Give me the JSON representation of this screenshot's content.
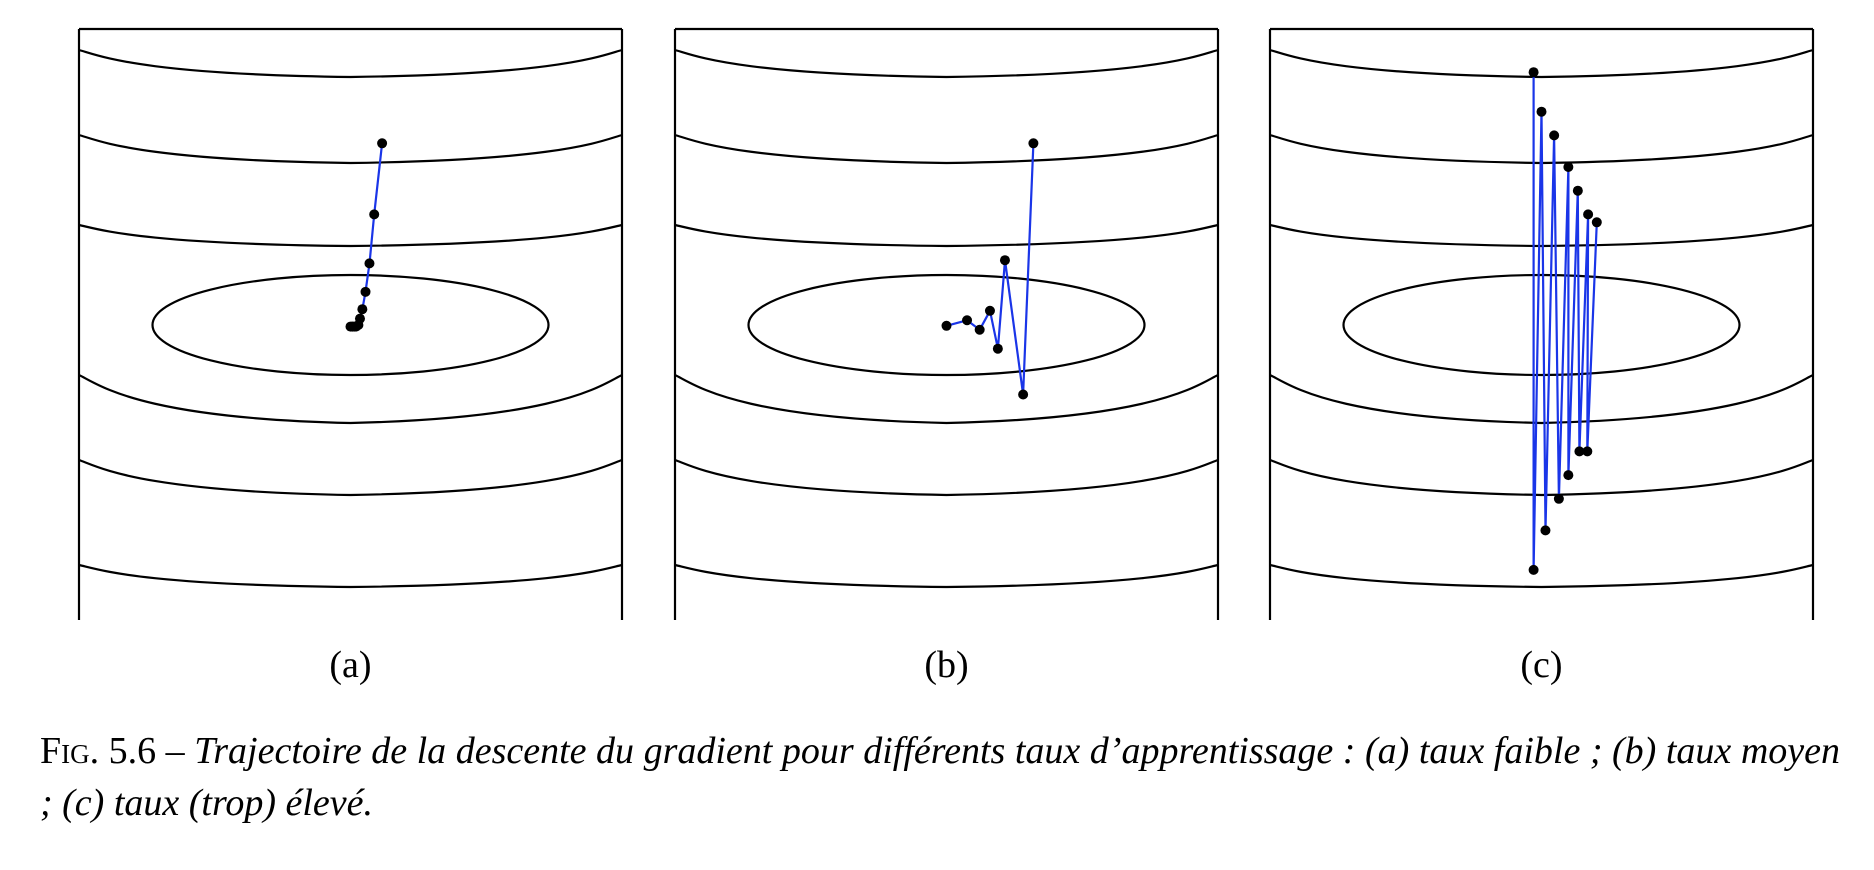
{
  "colors": {
    "trajectory": "#1a35e8",
    "contour": "#000000",
    "point": "#000000"
  },
  "panels": [
    {
      "label": "(a)",
      "trajectory": [
        [
          0.4,
          2.3
        ],
        [
          0.3,
          1.4
        ],
        [
          0.24,
          0.78
        ],
        [
          0.19,
          0.42
        ],
        [
          0.15,
          0.2
        ],
        [
          0.12,
          0.08
        ],
        [
          0.1,
          0.0
        ],
        [
          0.07,
          -0.02
        ],
        [
          0.05,
          -0.02
        ],
        [
          0.03,
          -0.02
        ],
        [
          0.02,
          -0.02
        ],
        [
          0.0,
          -0.02
        ]
      ]
    },
    {
      "label": "(b)",
      "trajectory": [
        [
          1.1,
          2.3
        ],
        [
          0.97,
          -0.88
        ],
        [
          0.74,
          0.82
        ],
        [
          0.65,
          -0.3
        ],
        [
          0.55,
          0.18
        ],
        [
          0.42,
          -0.06
        ],
        [
          0.26,
          0.06
        ],
        [
          0.0,
          -0.01
        ]
      ]
    },
    {
      "label": "(c)",
      "trajectory": [
        [
          -0.1,
          3.2
        ],
        [
          -0.1,
          -3.1
        ],
        [
          0.0,
          2.7
        ],
        [
          0.05,
          -2.6
        ],
        [
          0.16,
          2.4
        ],
        [
          0.22,
          -2.2
        ],
        [
          0.34,
          2.0
        ],
        [
          0.34,
          -1.9
        ],
        [
          0.46,
          1.7
        ],
        [
          0.48,
          -1.6
        ],
        [
          0.59,
          1.4
        ],
        [
          0.58,
          -1.6
        ],
        [
          0.7,
          1.3
        ]
      ]
    }
  ],
  "caption": {
    "figure_label": "Fig. 5.6 – ",
    "text": "Trajectoire de la descente du gradient pour différents taux d’apprentissage : (a) taux faible ; (b) taux moyen ; (c) taux (trop) élevé."
  }
}
